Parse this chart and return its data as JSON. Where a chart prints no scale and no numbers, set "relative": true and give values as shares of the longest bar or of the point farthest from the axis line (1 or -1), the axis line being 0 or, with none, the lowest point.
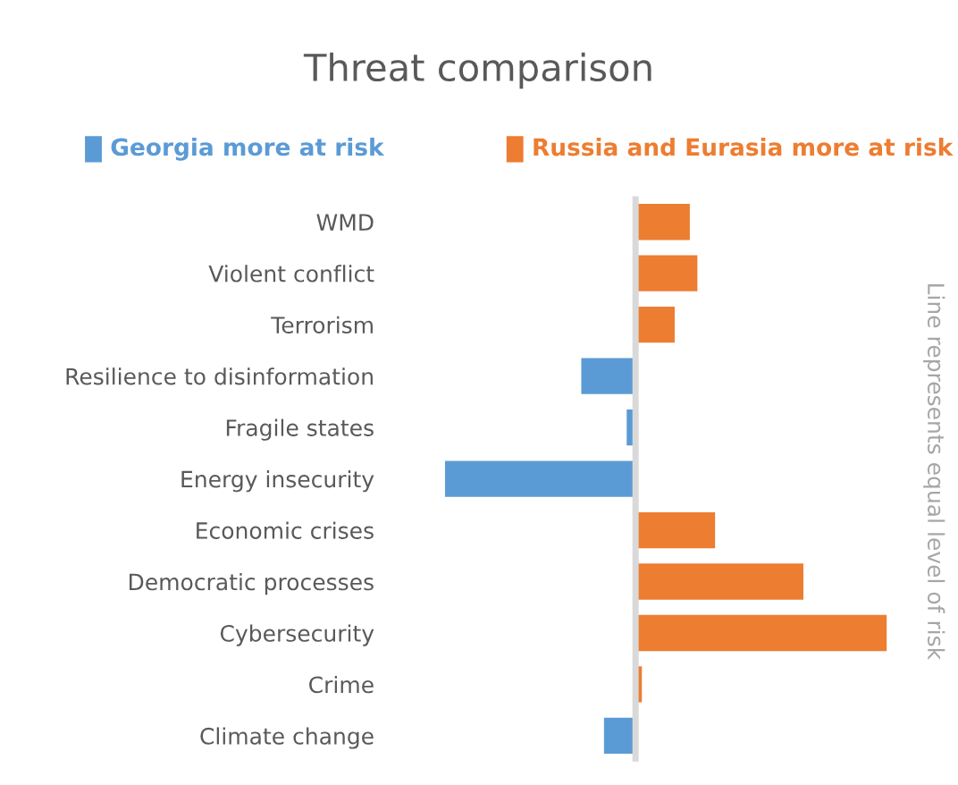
{
  "chart_data": {
    "type": "bar",
    "orientation": "horizontal",
    "relative": true,
    "title": "Threat comparison",
    "categories": [
      "WMD",
      "Violent conflict",
      "Terrorism",
      "Resilience to disinformation",
      "Fragile states",
      "Energy insecurity",
      "Economic crises",
      "Democratic processes",
      "Cybersecurity",
      "Crime",
      "Climate change"
    ],
    "series": [
      {
        "name": "Georgia more at risk",
        "color": "#5b9bd5",
        "values": [
          null,
          null,
          null,
          -0.22,
          -0.04,
          -0.76,
          null,
          null,
          null,
          null,
          -0.13
        ]
      },
      {
        "name": "Russia and Eurasia more at risk",
        "color": "#ed7d31",
        "values": [
          0.22,
          0.25,
          0.16,
          null,
          null,
          null,
          0.32,
          0.67,
          1,
          0.03,
          null
        ]
      }
    ],
    "ref_lines": [
      {
        "axis": "x",
        "value": 0,
        "color": "#d9d9d9"
      }
    ],
    "annotations": [
      "Line represents equal level of risk"
    ],
    "legend": "top",
    "grid": false
  }
}
